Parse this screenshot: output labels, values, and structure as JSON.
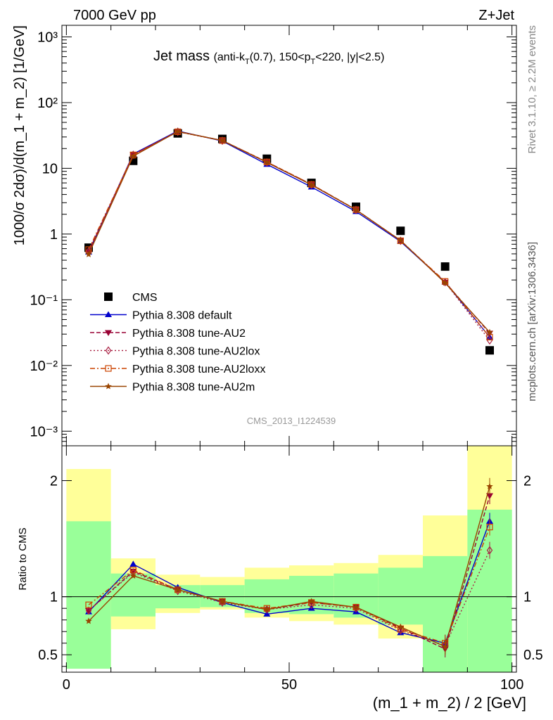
{
  "header": {
    "left": "7000 GeV pp",
    "right": "Z+Jet",
    "side_right_top": "Rivet 3.1.10, ≥ 2.2M events",
    "side_right_bottom": "mcplots.cern.ch [arXiv:1306.3436]",
    "watermark": "CMS_2013_I1224539"
  },
  "chart_data": [
    {
      "type": "scatter",
      "title": "Jet mass",
      "subtitle": "(anti-kT(0.7), 150<pT<220, |y|<2.5)",
      "ylabel": "1000/σ 2dσ)/d(m_1 + m_2) [1/GeV]",
      "xlim": [
        -1,
        101
      ],
      "ylog": true,
      "ylim": [
        0.0006,
        1500
      ],
      "yticklabels": [
        "10⁻³",
        "10⁻²",
        "10⁻¹",
        "1",
        "10",
        "10²",
        "10³"
      ],
      "x": [
        5,
        15,
        25,
        35,
        45,
        55,
        65,
        75,
        85,
        95
      ],
      "series": [
        {
          "name": "CMS",
          "color": "#000000",
          "marker": "square",
          "values": [
            0.62,
            13.0,
            34.0,
            28.0,
            14.0,
            6.0,
            2.6,
            1.12,
            0.32,
            0.017
          ]
        },
        {
          "name": "Pythia 8.308 default",
          "color": "#0000cc",
          "marker": "triangle-up",
          "dash": "solid",
          "values": [
            0.53,
            16.5,
            37.0,
            26.0,
            11.5,
            5.2,
            2.2,
            0.77,
            0.185,
            0.027
          ]
        },
        {
          "name": "Pythia 8.308 tune-AU2",
          "color": "#990033",
          "marker": "triangle-down",
          "dash": "6,3",
          "values": [
            0.53,
            16.2,
            36.5,
            26.5,
            12.5,
            5.7,
            2.35,
            0.8,
            0.185,
            0.031
          ]
        },
        {
          "name": "Pythia 8.308 tune-AU2lox",
          "color": "#aa2244",
          "marker": "diamond",
          "dash": "2,3",
          "values": [
            0.55,
            16.0,
            36.0,
            26.3,
            12.3,
            5.6,
            2.33,
            0.79,
            0.185,
            0.024
          ]
        },
        {
          "name": "Pythia 8.308 tune-AU2loxx",
          "color": "#cc4400",
          "marker": "square-open",
          "dash": "7,3,2,3",
          "values": [
            0.58,
            16.0,
            36.0,
            26.5,
            12.5,
            5.7,
            2.35,
            0.79,
            0.19,
            0.027
          ]
        },
        {
          "name": "Pythia 8.308 tune-AU2m",
          "color": "#994400",
          "marker": "star",
          "dash": "solid",
          "values": [
            0.49,
            15.3,
            36.3,
            26.5,
            12.3,
            5.6,
            2.34,
            0.8,
            0.18,
            0.032
          ]
        }
      ]
    },
    {
      "type": "line",
      "ylabel": "Ratio to CMS",
      "xlabel": "(m_1 + m_2) / 2 [GeV]",
      "xlim": [
        -1,
        101
      ],
      "ylim": [
        0.35,
        2.3
      ],
      "xticklabels": [
        "0",
        "50",
        "100"
      ],
      "yticklabels": [
        "0.5",
        "1",
        "2"
      ],
      "x": [
        5,
        15,
        25,
        35,
        45,
        55,
        65,
        75,
        85,
        95
      ],
      "bands": {
        "edges": [
          0,
          10,
          20,
          30,
          40,
          50,
          60,
          70,
          80,
          90,
          100
        ],
        "stat_lo": [
          0.38,
          0.83,
          0.9,
          0.91,
          0.86,
          0.85,
          0.82,
          0.76,
          0.35,
          0.35
        ],
        "stat_hi": [
          1.65,
          1.2,
          1.1,
          1.1,
          1.15,
          1.18,
          1.2,
          1.25,
          1.35,
          1.75
        ],
        "syst_lo": [
          0.38,
          0.72,
          0.86,
          0.89,
          0.82,
          0.79,
          0.76,
          0.64,
          0.35,
          0.35
        ],
        "syst_hi": [
          2.1,
          1.33,
          1.19,
          1.17,
          1.25,
          1.27,
          1.29,
          1.36,
          1.7,
          2.3
        ]
      },
      "series": [
        {
          "name": "Pythia 8.308 default",
          "values": [
            0.87,
            1.28,
            1.08,
            0.95,
            0.85,
            0.9,
            0.87,
            0.69,
            0.6,
            1.65
          ]
        },
        {
          "name": "Pythia 8.308 tune-AU2",
          "values": [
            0.88,
            1.22,
            1.06,
            0.96,
            0.89,
            0.95,
            0.91,
            0.73,
            0.55,
            1.87
          ]
        },
        {
          "name": "Pythia 8.308 tune-AU2lox",
          "values": [
            0.88,
            1.21,
            1.05,
            0.95,
            0.89,
            0.93,
            0.9,
            0.71,
            0.58,
            1.4
          ]
        },
        {
          "name": "Pythia 8.308 tune-AU2loxx",
          "values": [
            0.93,
            1.23,
            1.06,
            0.96,
            0.9,
            0.95,
            0.91,
            0.72,
            0.6,
            1.6
          ]
        },
        {
          "name": "Pythia 8.308 tune-AU2m",
          "values": [
            0.79,
            1.18,
            1.06,
            0.96,
            0.89,
            0.96,
            0.91,
            0.74,
            0.57,
            1.95
          ]
        }
      ]
    }
  ]
}
